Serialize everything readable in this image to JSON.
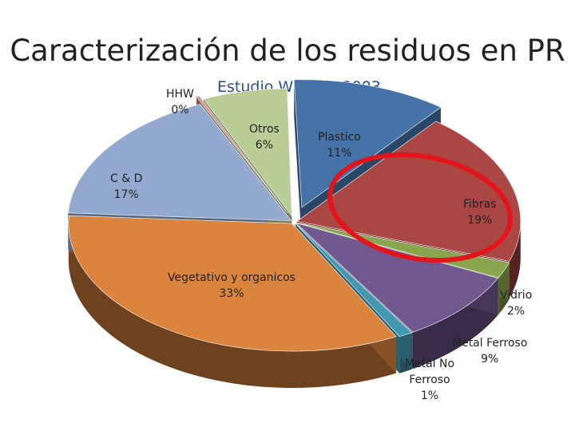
{
  "slide": {
    "title": "Caracterización de los residuos en PR"
  },
  "chart_data": {
    "type": "pie",
    "title": "Estudio Wheran 2003",
    "style": "3d-exploded",
    "slices": [
      {
        "name": "Plastico",
        "value": 11,
        "label": "11%",
        "color": "#4572a7"
      },
      {
        "name": "Fibras",
        "value": 19,
        "label": "19%",
        "color": "#aa4643"
      },
      {
        "name": "Vidrio",
        "value": 2,
        "label": "2%",
        "color": "#89a54e"
      },
      {
        "name": "Metal Ferroso",
        "value": 9,
        "label": "9%",
        "color": "#71588f"
      },
      {
        "name": "Metal No Ferroso",
        "value": 1,
        "label": "1%",
        "color": "#4198af"
      },
      {
        "name": "Vegetativo y organicos",
        "value": 33,
        "label": "33%",
        "color": "#db843d"
      },
      {
        "name": "C & D",
        "value": 17,
        "label": "17%",
        "color": "#93a9cf"
      },
      {
        "name": "HHW",
        "value": 0,
        "label": "0%",
        "color": "#d19392"
      },
      {
        "name": "Otros",
        "value": 6,
        "label": "6%",
        "color": "#b9cd96"
      }
    ],
    "annotation": {
      "shape": "ellipse",
      "color": "#e3141b",
      "target": "Fibras"
    }
  }
}
